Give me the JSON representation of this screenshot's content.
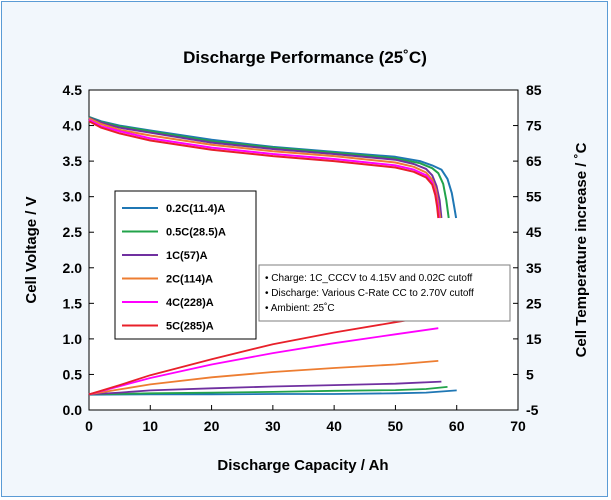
{
  "chart_data": {
    "type": "line",
    "title": "Discharge Performance (25˚C)",
    "xlabel": "Discharge Capacity / Ah",
    "ylabel": "Cell Voltage / V",
    "y2label": "Cell Temperature increase / ˚C",
    "xlim": [
      0,
      70
    ],
    "ylim": [
      0,
      4.5
    ],
    "y2lim": [
      -5,
      85
    ],
    "x_ticks": [
      "0",
      "10",
      "20",
      "30",
      "40",
      "50",
      "60",
      "70"
    ],
    "y_ticks": [
      "0.0",
      "0.5",
      "1.0",
      "1.5",
      "2.0",
      "2.5",
      "3.0",
      "3.5",
      "4.0",
      "4.5"
    ],
    "y2_ticks": [
      "-5",
      "5",
      "15",
      "25",
      "35",
      "45",
      "55",
      "65",
      "75",
      "85"
    ],
    "grid": false,
    "legend_position": "left-middle",
    "notes": [
      "• Charge: 1C_CCCV to 4.15V and 0.02C cutoff",
      "• Discharge: Various C-Rate CC to 2.70V cutoff",
      "• Ambient: 25˚C"
    ],
    "series": [
      {
        "name": "0.2C(11.4)A",
        "color": "#1f77b4",
        "voltage": {
          "x": [
            0,
            2,
            5,
            10,
            20,
            30,
            40,
            50,
            54,
            56,
            57.5,
            58.5,
            59.2,
            59.6,
            59.9
          ],
          "y": [
            4.12,
            4.06,
            4.0,
            3.93,
            3.8,
            3.7,
            3.63,
            3.56,
            3.5,
            3.44,
            3.38,
            3.25,
            3.05,
            2.85,
            2.7
          ]
        },
        "temperature": {
          "x": [
            0,
            10,
            20,
            30,
            40,
            50,
            55,
            60
          ],
          "y": [
            -0.7,
            -0.6,
            -0.6,
            -0.5,
            -0.5,
            -0.3,
            -0.1,
            0.5
          ]
        }
      },
      {
        "name": "0.5C(28.5)A",
        "color": "#22a34a",
        "voltage": {
          "x": [
            0,
            2,
            5,
            10,
            20,
            30,
            40,
            50,
            54,
            56,
            57,
            57.8,
            58.3,
            58.7
          ],
          "y": [
            4.12,
            4.05,
            3.99,
            3.92,
            3.78,
            3.69,
            3.62,
            3.54,
            3.47,
            3.4,
            3.33,
            3.18,
            2.95,
            2.7
          ]
        },
        "temperature": {
          "x": [
            0,
            10,
            20,
            30,
            40,
            50,
            55,
            58.5
          ],
          "y": [
            -0.6,
            -0.3,
            -0.1,
            0.1,
            0.4,
            0.6,
            0.9,
            1.5
          ]
        }
      },
      {
        "name": "1C(57)A",
        "color": "#7030a0",
        "voltage": {
          "x": [
            0,
            2,
            5,
            10,
            20,
            30,
            40,
            50,
            53,
            55,
            56,
            56.7,
            57.2,
            57.5
          ],
          "y": [
            4.11,
            4.04,
            3.97,
            3.9,
            3.76,
            3.67,
            3.6,
            3.52,
            3.46,
            3.39,
            3.3,
            3.15,
            2.95,
            2.7
          ]
        },
        "temperature": {
          "x": [
            0,
            5,
            10,
            20,
            30,
            40,
            50,
            57.5
          ],
          "y": [
            -0.6,
            -0.1,
            0.5,
            1.1,
            1.6,
            2.0,
            2.4,
            3.0
          ]
        }
      },
      {
        "name": "2C(114)A",
        "color": "#ed7d31",
        "voltage": {
          "x": [
            0,
            2,
            5,
            10,
            20,
            30,
            40,
            50,
            53,
            55,
            56,
            56.6,
            57.0,
            57.3
          ],
          "y": [
            4.1,
            4.02,
            3.94,
            3.86,
            3.73,
            3.64,
            3.57,
            3.48,
            3.42,
            3.34,
            3.24,
            3.1,
            2.9,
            2.7
          ]
        },
        "temperature": {
          "x": [
            0,
            5,
            10,
            20,
            30,
            40,
            50,
            57
          ],
          "y": [
            -0.6,
            0.8,
            2.2,
            4.2,
            5.7,
            6.8,
            7.8,
            8.8
          ]
        }
      },
      {
        "name": "4C(228)A",
        "color": "#ff00ff",
        "voltage": {
          "x": [
            0,
            2,
            5,
            10,
            20,
            30,
            40,
            50,
            53,
            55,
            56,
            56.5,
            56.9,
            57.1
          ],
          "y": [
            4.08,
            3.99,
            3.92,
            3.82,
            3.69,
            3.6,
            3.53,
            3.44,
            3.38,
            3.3,
            3.2,
            3.05,
            2.88,
            2.7
          ]
        },
        "temperature": {
          "x": [
            0,
            5,
            10,
            20,
            30,
            40,
            50,
            57
          ],
          "y": [
            -0.6,
            1.7,
            4.0,
            7.8,
            11.0,
            13.8,
            16.3,
            18.0
          ]
        }
      },
      {
        "name": "5C(285)A",
        "color": "#e8202a",
        "voltage": {
          "x": [
            0,
            2,
            5,
            10,
            20,
            30,
            40,
            50,
            53,
            55,
            56,
            56.5,
            56.8,
            57.0
          ],
          "y": [
            4.06,
            3.97,
            3.89,
            3.79,
            3.66,
            3.57,
            3.5,
            3.41,
            3.35,
            3.27,
            3.17,
            3.02,
            2.86,
            2.7
          ]
        },
        "temperature": {
          "x": [
            0,
            5,
            10,
            20,
            30,
            40,
            50,
            57
          ],
          "y": [
            -0.6,
            2.0,
            4.8,
            9.3,
            13.5,
            16.8,
            19.7,
            21.7
          ]
        }
      }
    ]
  }
}
